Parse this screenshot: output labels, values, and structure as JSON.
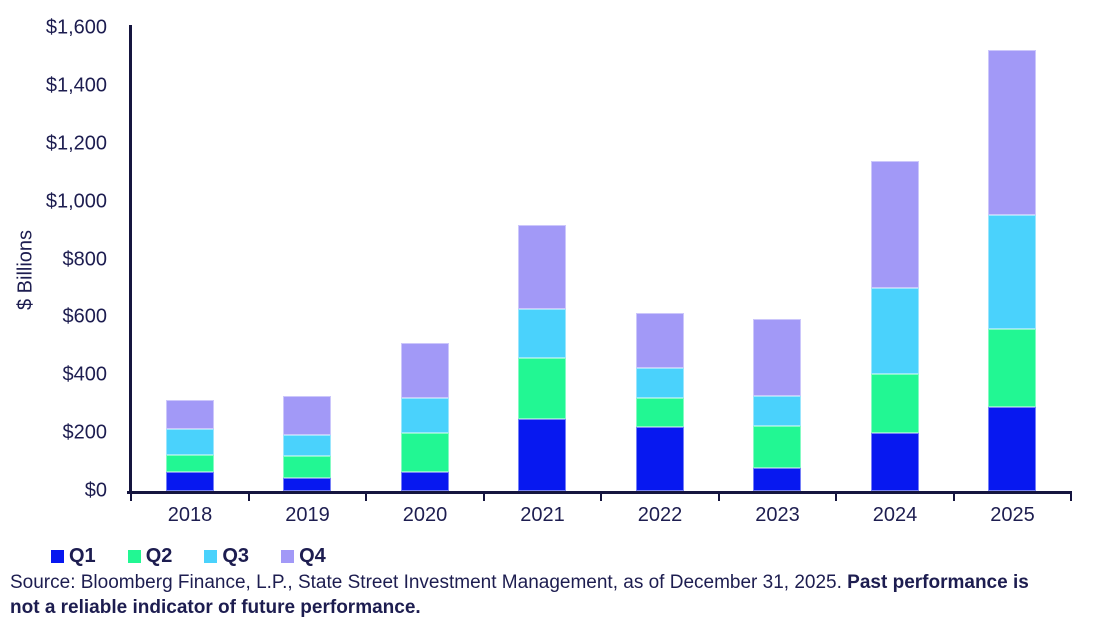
{
  "chart_data": {
    "type": "bar",
    "stacked": true,
    "title": "",
    "xlabel": "",
    "ylabel": "$ Billions",
    "categories": [
      "2018",
      "2019",
      "2020",
      "2021",
      "2022",
      "2023",
      "2024",
      "2025"
    ],
    "series": [
      {
        "name": "Q1",
        "color": "#0718f0",
        "values": [
          65,
          45,
          65,
          250,
          220,
          80,
          200,
          290
        ]
      },
      {
        "name": "Q2",
        "color": "#22f793",
        "values": [
          60,
          75,
          135,
          210,
          100,
          145,
          205,
          270
        ]
      },
      {
        "name": "Q3",
        "color": "#4ad2fc",
        "values": [
          90,
          75,
          120,
          170,
          105,
          105,
          295,
          395
        ]
      },
      {
        "name": "Q4",
        "color": "#a299f7",
        "values": [
          100,
          135,
          190,
          290,
          190,
          265,
          440,
          570
        ]
      }
    ],
    "stack_totals": [
      315,
      330,
      510,
      920,
      615,
      595,
      1140,
      1525
    ],
    "ylim": [
      0,
      1600
    ],
    "ytick_step": 200,
    "ytick_labels": [
      "$0",
      "$200",
      "$400",
      "$600",
      "$800",
      "$1,000",
      "$1,200",
      "$1,400",
      "$1,600"
    ],
    "grid": false,
    "legend_position": "bottom-left"
  },
  "legend": {
    "items": [
      {
        "label": "Q1",
        "color": "#0718f0"
      },
      {
        "label": "Q2",
        "color": "#22f793"
      },
      {
        "label": "Q3",
        "color": "#4ad2fc"
      },
      {
        "label": "Q4",
        "color": "#a299f7"
      }
    ]
  },
  "source": {
    "line1_normal": "Source: Bloomberg Finance, L.P., State Street Investment Management, as of December 31, 2025. ",
    "line1_bold": "Past performance is",
    "line2_bold": "not a reliable indicator of future performance."
  },
  "colors": {
    "axis": "#15153f",
    "text": "#1d1d50",
    "background": "#ffffff"
  }
}
